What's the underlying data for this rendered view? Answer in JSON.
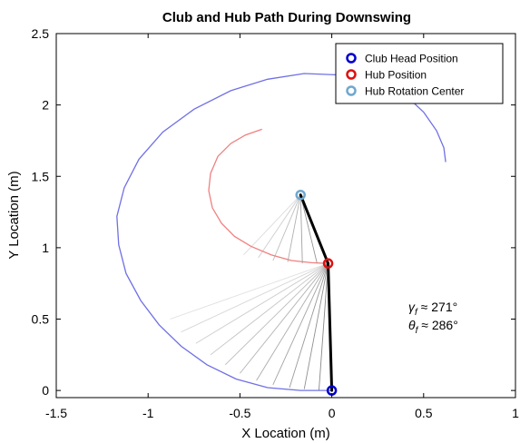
{
  "chart_data": {
    "type": "line",
    "title": "Club and Hub Path During Downswing",
    "xlabel": "X Location (m)",
    "ylabel": "Y Location (m)",
    "xlim": [
      -1.5,
      1
    ],
    "ylim": [
      -0.05,
      2.5
    ],
    "xticks": [
      -1.5,
      -1,
      -0.5,
      0,
      0.5,
      1
    ],
    "xtick_labels": [
      "-1.5",
      "-1",
      "-0.5",
      "0",
      "0.5",
      "1"
    ],
    "yticks": [
      0,
      0.5,
      1,
      1.5,
      2,
      2.5
    ],
    "ytick_labels": [
      "0",
      "0.5",
      "1",
      "1.5",
      "2",
      "2.5"
    ],
    "grid": false,
    "legend_position": "top-right",
    "legend": [
      {
        "label": "Club Head Position",
        "color": "#0000cc"
      },
      {
        "label": "Hub Position",
        "color": "#dd1111"
      },
      {
        "label": "Hub Rotation Center",
        "color": "#6fa8cf"
      }
    ],
    "series": [
      {
        "name": "Club Head Position",
        "color": "#7070e6",
        "points": [
          [
            0.62,
            1.6
          ],
          [
            0.61,
            1.7
          ],
          [
            0.57,
            1.82
          ],
          [
            0.5,
            1.95
          ],
          [
            0.4,
            2.07
          ],
          [
            0.25,
            2.16
          ],
          [
            0.05,
            2.21
          ],
          [
            -0.15,
            2.22
          ],
          [
            -0.35,
            2.18
          ],
          [
            -0.55,
            2.1
          ],
          [
            -0.75,
            1.97
          ],
          [
            -0.92,
            1.81
          ],
          [
            -1.05,
            1.62
          ],
          [
            -1.13,
            1.42
          ],
          [
            -1.17,
            1.22
          ],
          [
            -1.16,
            1.02
          ],
          [
            -1.12,
            0.82
          ],
          [
            -1.04,
            0.63
          ],
          [
            -0.94,
            0.46
          ],
          [
            -0.82,
            0.31
          ],
          [
            -0.68,
            0.18
          ],
          [
            -0.52,
            0.08
          ],
          [
            -0.35,
            0.02
          ],
          [
            -0.17,
            0.0
          ],
          [
            0.0,
            0.0
          ]
        ]
      },
      {
        "name": "Hub Position",
        "color": "#f08080",
        "points": [
          [
            -0.38,
            1.83
          ],
          [
            -0.47,
            1.79
          ],
          [
            -0.55,
            1.73
          ],
          [
            -0.62,
            1.64
          ],
          [
            -0.66,
            1.52
          ],
          [
            -0.67,
            1.4
          ],
          [
            -0.65,
            1.28
          ],
          [
            -0.6,
            1.17
          ],
          [
            -0.53,
            1.08
          ],
          [
            -0.44,
            1.01
          ],
          [
            -0.33,
            0.95
          ],
          [
            -0.22,
            0.91
          ],
          [
            -0.11,
            0.895
          ],
          [
            -0.02,
            0.89
          ]
        ]
      }
    ],
    "hub_rotation_center": {
      "x": -0.17,
      "y": 1.37
    },
    "final_hub": {
      "x": -0.02,
      "y": 0.89
    },
    "final_club": {
      "x": 0.0,
      "y": 0.0
    },
    "club_shaft_trail": [
      [
        -0.88,
        0.5
      ],
      [
        -0.82,
        0.41
      ],
      [
        -0.74,
        0.33
      ],
      [
        -0.66,
        0.25
      ],
      [
        -0.58,
        0.18
      ],
      [
        -0.5,
        0.12
      ],
      [
        -0.41,
        0.07
      ],
      [
        -0.32,
        0.04
      ],
      [
        -0.23,
        0.02
      ],
      [
        -0.15,
        0.01
      ],
      [
        -0.07,
        0.0
      ]
    ],
    "arm_trail": [
      [
        -0.48,
        0.95
      ],
      [
        -0.4,
        0.93
      ],
      [
        -0.32,
        0.91
      ],
      [
        -0.24,
        0.9
      ],
      [
        -0.16,
        0.89
      ],
      [
        -0.08,
        0.89
      ]
    ],
    "annotations": [
      {
        "symbol": "γ",
        "subscript": "f",
        "text": " ≈ 271°"
      },
      {
        "symbol": "θ",
        "subscript": "f",
        "text": " ≈ 286°"
      }
    ]
  }
}
